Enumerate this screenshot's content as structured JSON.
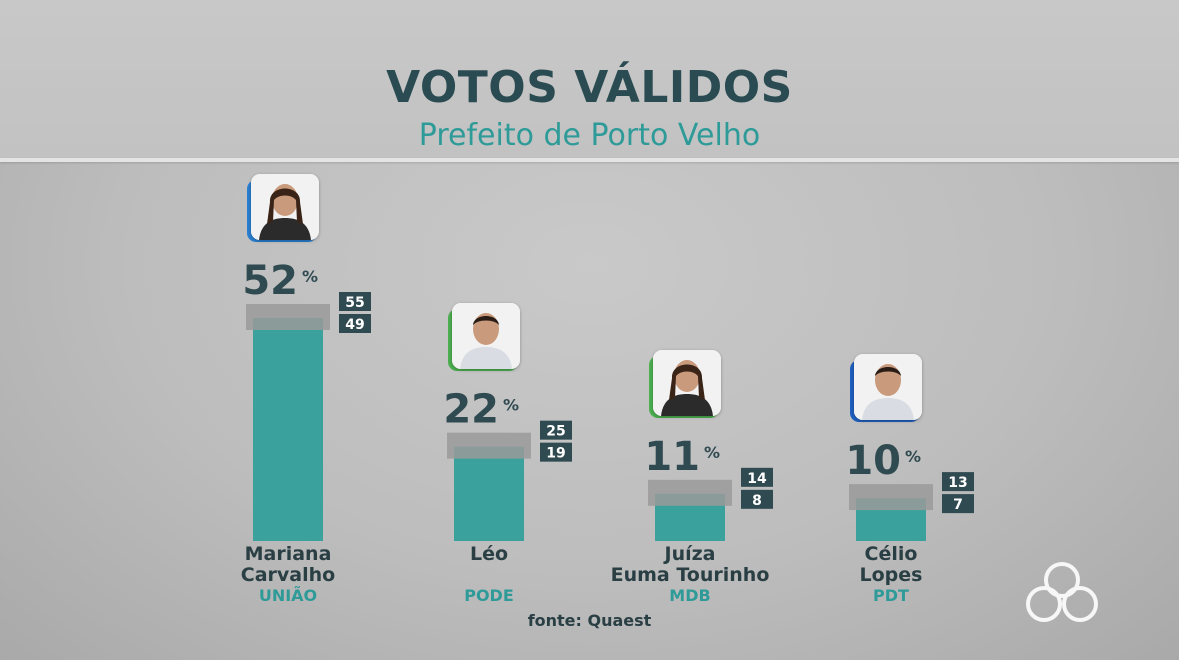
{
  "header": {
    "title": "VOTOS VÁLIDOS",
    "subtitle": "Prefeito de Porto Velho"
  },
  "footer": {
    "source": "fonte: Quaest"
  },
  "colors": {
    "bar": "#3aa19c",
    "margin_band": "#9a9a9a",
    "range_box": "#2f4a50",
    "title": "#2a4b52",
    "accent": "#2e9b99"
  },
  "chart_data": {
    "type": "bar",
    "title": "VOTOS VÁLIDOS",
    "subtitle": "Prefeito de Porto Velho",
    "unit": "%",
    "categories": [
      "Mariana Carvalho",
      "Léo",
      "Juíza Euma Tourinho",
      "Célio Lopes"
    ],
    "bars": [
      {
        "name_lines": [
          "Mariana",
          "Carvalho"
        ],
        "party": "UNIÃO",
        "value": 52,
        "high": 55,
        "low": 49,
        "accent_color": "#2a7fd0",
        "avatar_icon": "woman-portrait-icon"
      },
      {
        "name_lines": [
          "Léo",
          ""
        ],
        "party": "PODE",
        "value": 22,
        "high": 25,
        "low": 19,
        "accent_color": "#4caf50",
        "avatar_icon": "man-portrait-icon"
      },
      {
        "name_lines": [
          "Juíza",
          "Euma Tourinho"
        ],
        "party": "MDB",
        "value": 11,
        "high": 14,
        "low": 8,
        "accent_color": "#4caf50",
        "avatar_icon": "woman-portrait-icon"
      },
      {
        "name_lines": [
          "Célio",
          "Lopes"
        ],
        "party": "PDT",
        "value": 10,
        "high": 13,
        "low": 7,
        "accent_color": "#1f5fbf",
        "avatar_icon": "man-portrait-icon"
      }
    ],
    "values": [
      52,
      22,
      11,
      10
    ],
    "ylim": [
      0,
      52
    ]
  }
}
